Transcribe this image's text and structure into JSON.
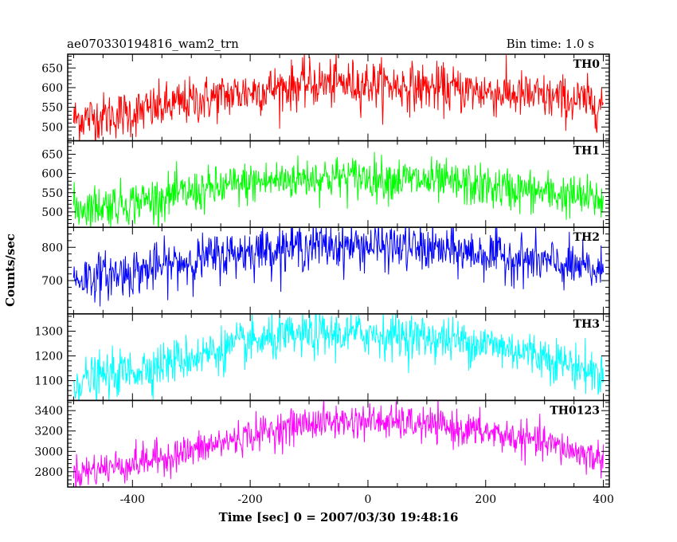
{
  "header": {
    "left": "ae070330194816_wam2_trn",
    "right": "Bin time: 1.0 s"
  },
  "chart_data": {
    "type": "line",
    "xlabel": "Time [sec] 0 = 2007/03/30 19:48:16",
    "ylabel": "Counts/sec",
    "xlim": [
      -510,
      410
    ],
    "x_ticks": [
      -400,
      -200,
      0,
      200,
      400
    ],
    "x_range": [
      -500,
      400
    ],
    "bin_time_s": 1.0,
    "grid": false,
    "panels": [
      {
        "label": "TH0",
        "color": "#ff0000",
        "ylim": [
          465,
          685
        ],
        "yticks": [
          500,
          550,
          600,
          650
        ],
        "noise": 30,
        "curve": [
          [
            -500,
            520
          ],
          [
            -400,
            535
          ],
          [
            -300,
            565
          ],
          [
            -200,
            590
          ],
          [
            -100,
            610
          ],
          [
            0,
            610
          ],
          [
            100,
            600
          ],
          [
            200,
            590
          ],
          [
            300,
            575
          ],
          [
            400,
            560
          ]
        ]
      },
      {
        "label": "TH1",
        "color": "#00ff00",
        "ylim": [
          460,
          685
        ],
        "yticks": [
          500,
          550,
          600,
          650
        ],
        "noise": 28,
        "curve": [
          [
            -500,
            510
          ],
          [
            -400,
            525
          ],
          [
            -300,
            550
          ],
          [
            -200,
            575
          ],
          [
            -100,
            590
          ],
          [
            0,
            590
          ],
          [
            100,
            580
          ],
          [
            200,
            565
          ],
          [
            300,
            550
          ],
          [
            400,
            530
          ]
        ]
      },
      {
        "label": "TH2",
        "color": "#0000ff",
        "ylim": [
          600,
          860
        ],
        "yticks": [
          700,
          800
        ],
        "noise": 35,
        "curve": [
          [
            -500,
            705
          ],
          [
            -400,
            725
          ],
          [
            -300,
            760
          ],
          [
            -200,
            790
          ],
          [
            -100,
            805
          ],
          [
            0,
            805
          ],
          [
            100,
            795
          ],
          [
            200,
            780
          ],
          [
            300,
            755
          ],
          [
            400,
            725
          ]
        ]
      },
      {
        "label": "TH3",
        "color": "#00ffff",
        "ylim": [
          1020,
          1370
        ],
        "yticks": [
          1100,
          1200,
          1300
        ],
        "noise": 45,
        "curve": [
          [
            -500,
            1095
          ],
          [
            -400,
            1140
          ],
          [
            -300,
            1195
          ],
          [
            -200,
            1255
          ],
          [
            -100,
            1285
          ],
          [
            0,
            1290
          ],
          [
            100,
            1275
          ],
          [
            200,
            1250
          ],
          [
            300,
            1200
          ],
          [
            400,
            1120
          ]
        ]
      },
      {
        "label": "TH0123",
        "color": "#ff00ff",
        "ylim": [
          2650,
          3500
        ],
        "yticks": [
          2800,
          3000,
          3200,
          3400
        ],
        "noise": 85,
        "curve": [
          [
            -500,
            2790
          ],
          [
            -400,
            2880
          ],
          [
            -300,
            3000
          ],
          [
            -200,
            3160
          ],
          [
            -100,
            3280
          ],
          [
            0,
            3300
          ],
          [
            100,
            3260
          ],
          [
            200,
            3190
          ],
          [
            300,
            3080
          ],
          [
            400,
            2920
          ]
        ]
      }
    ]
  }
}
